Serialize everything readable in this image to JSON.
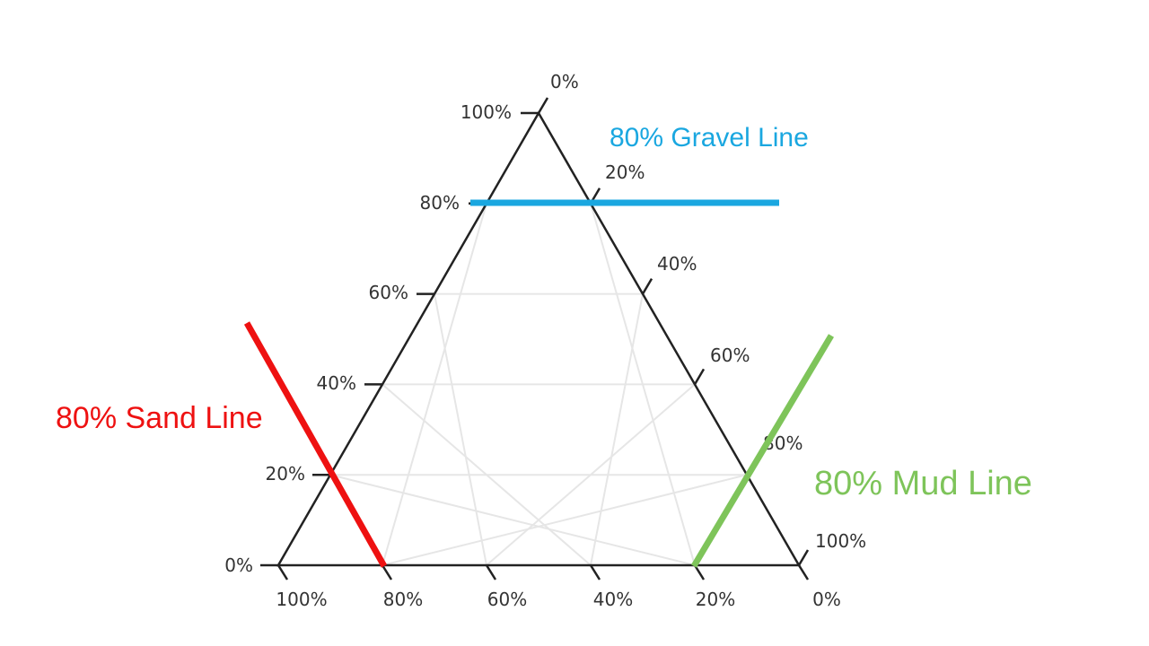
{
  "diagram": {
    "type": "ternary",
    "left_axis": {
      "ticks": [
        "0%",
        "20%",
        "40%",
        "60%",
        "80%",
        "100%"
      ]
    },
    "right_axis": {
      "ticks": [
        "0%",
        "20%",
        "40%",
        "60%",
        "80%",
        "100%"
      ]
    },
    "bottom_axis": {
      "ticks": [
        "100%",
        "80%",
        "60%",
        "40%",
        "20%",
        "0%"
      ]
    },
    "annotations": [
      {
        "text": "80% Gravel Line",
        "color": "#1aa7e0",
        "component": "gravel",
        "value": 80
      },
      {
        "text": "80% Sand Line",
        "color": "#ee1111",
        "component": "sand",
        "value": 80
      },
      {
        "text": "80% Mud Line",
        "color": "#7ec45a",
        "component": "mud",
        "value": 80
      }
    ],
    "colors": {
      "frame": "#222222",
      "grid": "#e6e6e6",
      "text": "#333333"
    }
  }
}
